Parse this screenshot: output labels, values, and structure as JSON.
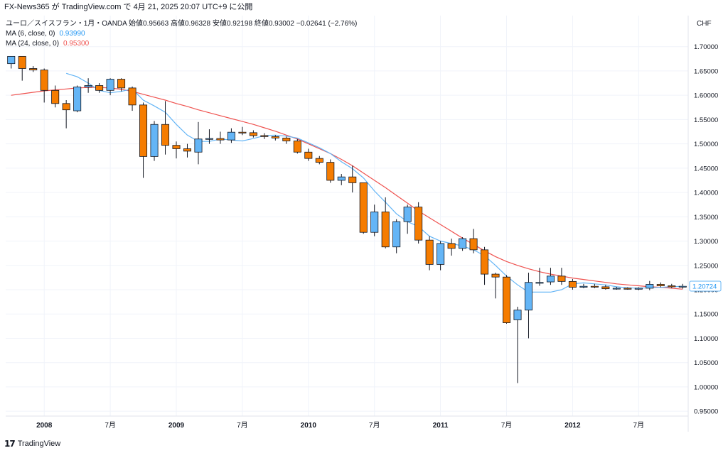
{
  "header": {
    "source_line": "FX-News365 が TradingView.com で 4月 21, 2025 20:07 UTC+9 に公開"
  },
  "legend": {
    "symbol_line": "ユーロ／スイスフラン・1月・OANDA  始値0.95663  高値0.96328  安値0.92198  終値0.93002  −0.02641 (−2.76%)",
    "ma6_label": "MA (6, close, 0)",
    "ma6_value": "0.93990",
    "ma24_label": "MA (24, close, 0)",
    "ma24_value": "0.95300"
  },
  "colors": {
    "up": "#64b5f6",
    "down": "#f57c00",
    "ma6": "#64b5f6",
    "ma24": "#ef5350",
    "grid": "#f0f3fa",
    "axis_text": "#131722"
  },
  "footer": {
    "brand": "TradingView"
  },
  "chart_data": {
    "type": "candlestick",
    "currency_label": "CHF",
    "last_price_label": "1.20724",
    "ylim": [
      0.94,
      1.72
    ],
    "y_ticks": [
      "1.70000",
      "1.65000",
      "1.60000",
      "1.55000",
      "1.50000",
      "1.45000",
      "1.40000",
      "1.35000",
      "1.30000",
      "1.25000",
      "1.20000",
      "1.15000",
      "1.10000",
      "1.05000",
      "1.00000",
      "0.95000"
    ],
    "x_ticks": [
      {
        "index": 3,
        "label": "2008"
      },
      {
        "index": 9,
        "label": "7月"
      },
      {
        "index": 15,
        "label": "2009"
      },
      {
        "index": 21,
        "label": "7月"
      },
      {
        "index": 27,
        "label": "2010"
      },
      {
        "index": 33,
        "label": "7月"
      },
      {
        "index": 39,
        "label": "2011"
      },
      {
        "index": 45,
        "label": "7月"
      },
      {
        "index": 51,
        "label": "2012"
      },
      {
        "index": 57,
        "label": "7月"
      }
    ],
    "ohlc": [
      [
        1.665,
        1.68,
        1.655,
        1.68
      ],
      [
        1.68,
        1.68,
        1.63,
        1.655
      ],
      [
        1.655,
        1.66,
        1.648,
        1.652
      ],
      [
        1.652,
        1.655,
        1.585,
        1.61
      ],
      [
        1.61,
        1.62,
        1.575,
        1.583
      ],
      [
        1.583,
        1.59,
        1.532,
        1.57
      ],
      [
        1.568,
        1.62,
        1.565,
        1.617
      ],
      [
        1.617,
        1.635,
        1.605,
        1.62
      ],
      [
        1.62,
        1.625,
        1.605,
        1.61
      ],
      [
        1.61,
        1.635,
        1.6,
        1.633
      ],
      [
        1.633,
        1.635,
        1.608,
        1.615
      ],
      [
        1.615,
        1.618,
        1.568,
        1.58
      ],
      [
        1.58,
        1.585,
        1.43,
        1.474
      ],
      [
        1.474,
        1.547,
        1.465,
        1.54
      ],
      [
        1.54,
        1.588,
        1.478,
        1.497
      ],
      [
        1.497,
        1.505,
        1.47,
        1.49
      ],
      [
        1.49,
        1.5,
        1.472,
        1.485
      ],
      [
        1.483,
        1.545,
        1.458,
        1.51
      ],
      [
        1.51,
        1.53,
        1.5,
        1.511
      ],
      [
        1.511,
        1.525,
        1.5,
        1.508
      ],
      [
        1.508,
        1.532,
        1.502,
        1.524
      ],
      [
        1.524,
        1.535,
        1.518,
        1.523
      ],
      [
        1.523,
        1.528,
        1.513,
        1.517
      ],
      [
        1.517,
        1.522,
        1.51,
        1.515
      ],
      [
        1.515,
        1.518,
        1.507,
        1.512
      ],
      [
        1.512,
        1.515,
        1.5,
        1.506
      ],
      [
        1.506,
        1.51,
        1.48,
        1.483
      ],
      [
        1.483,
        1.49,
        1.465,
        1.47
      ],
      [
        1.47,
        1.475,
        1.458,
        1.462
      ],
      [
        1.462,
        1.468,
        1.42,
        1.425
      ],
      [
        1.425,
        1.438,
        1.415,
        1.432
      ],
      [
        1.432,
        1.455,
        1.4,
        1.42
      ],
      [
        1.42,
        1.42,
        1.315,
        1.318
      ],
      [
        1.318,
        1.375,
        1.31,
        1.36
      ],
      [
        1.36,
        1.39,
        1.285,
        1.288
      ],
      [
        1.288,
        1.345,
        1.275,
        1.34
      ],
      [
        1.34,
        1.375,
        1.315,
        1.37
      ],
      [
        1.37,
        1.38,
        1.295,
        1.302
      ],
      [
        1.302,
        1.31,
        1.24,
        1.252
      ],
      [
        1.252,
        1.3,
        1.24,
        1.295
      ],
      [
        1.295,
        1.305,
        1.27,
        1.285
      ],
      [
        1.285,
        1.308,
        1.28,
        1.305
      ],
      [
        1.305,
        1.325,
        1.275,
        1.282
      ],
      [
        1.282,
        1.288,
        1.21,
        1.232
      ],
      [
        1.232,
        1.235,
        1.182,
        1.226
      ],
      [
        1.226,
        1.23,
        1.13,
        1.132
      ],
      [
        1.138,
        1.165,
        1.008,
        1.158
      ],
      [
        1.158,
        1.235,
        1.1,
        1.215
      ],
      [
        1.215,
        1.245,
        1.208,
        1.215
      ],
      [
        1.216,
        1.245,
        1.21,
        1.228
      ],
      [
        1.228,
        1.245,
        1.21,
        1.217
      ],
      [
        1.217,
        1.222,
        1.2,
        1.205
      ],
      [
        1.205,
        1.212,
        1.203,
        1.207
      ],
      [
        1.207,
        1.212,
        1.203,
        1.206
      ],
      [
        1.206,
        1.21,
        1.2,
        1.202
      ],
      [
        1.202,
        1.206,
        1.2,
        1.203
      ],
      [
        1.203,
        1.205,
        1.2,
        1.201
      ],
      [
        1.201,
        1.205,
        1.199,
        1.203
      ],
      [
        1.203,
        1.218,
        1.199,
        1.211
      ],
      [
        1.211,
        1.215,
        1.205,
        1.208
      ],
      [
        1.208,
        1.212,
        1.203,
        1.206
      ],
      [
        1.206,
        1.212,
        1.202,
        1.207
      ]
    ],
    "ma6": [
      null,
      null,
      null,
      null,
      null,
      1.645,
      1.638,
      1.625,
      1.61,
      1.605,
      1.608,
      1.613,
      1.59,
      1.578,
      1.565,
      1.54,
      1.518,
      1.505,
      1.505,
      1.51,
      1.508,
      1.506,
      1.511,
      1.517,
      1.518,
      1.516,
      1.512,
      1.502,
      1.492,
      1.48,
      1.463,
      1.449,
      1.43,
      1.403,
      1.38,
      1.356,
      1.34,
      1.33,
      1.31,
      1.3,
      1.295,
      1.29,
      1.282,
      1.27,
      1.25,
      1.228,
      1.21,
      1.195,
      1.195,
      1.195,
      1.2,
      1.212,
      1.214,
      1.212,
      1.21,
      1.206,
      1.204,
      1.203,
      1.204,
      1.205,
      1.206,
      1.207
    ],
    "ma24": [
      1.6,
      1.603,
      1.606,
      1.609,
      1.611,
      1.613,
      1.615,
      1.616,
      1.616,
      1.615,
      1.612,
      1.608,
      1.602,
      1.596,
      1.59,
      1.583,
      1.577,
      1.57,
      1.564,
      1.558,
      1.552,
      1.546,
      1.54,
      1.533,
      1.526,
      1.518,
      1.51,
      1.5,
      1.49,
      1.48,
      1.468,
      1.455,
      1.44,
      1.425,
      1.41,
      1.394,
      1.378,
      1.362,
      1.348,
      1.334,
      1.32,
      1.306,
      1.293,
      1.28,
      1.268,
      1.258,
      1.25,
      1.243,
      1.237,
      1.232,
      1.228,
      1.224,
      1.221,
      1.218,
      1.215,
      1.212,
      1.21,
      1.208,
      1.206,
      1.205,
      1.203,
      1.201
    ]
  }
}
